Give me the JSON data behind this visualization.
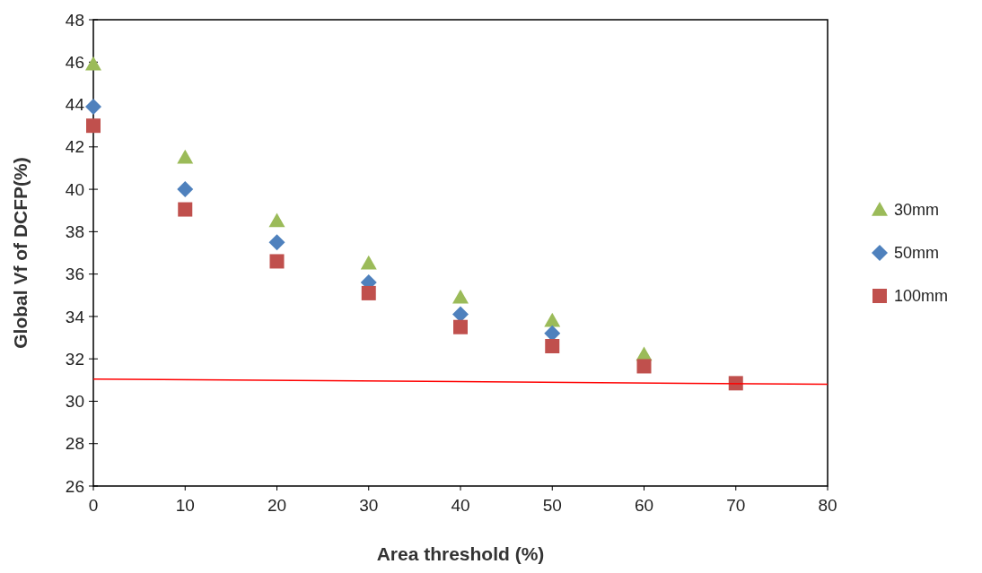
{
  "chart_data": {
    "type": "scatter",
    "xlabel": "Area threshold (%)",
    "ylabel": "Global Vf of DCFP(%)",
    "x": [
      0,
      10,
      20,
      30,
      40,
      50,
      60,
      70
    ],
    "series": [
      {
        "name": "30mm",
        "color": "#9bbb59",
        "marker": "triangle",
        "values": [
          45.9,
          41.5,
          38.5,
          36.5,
          34.9,
          33.8,
          32.2,
          null
        ]
      },
      {
        "name": "50mm",
        "color": "#4f81bd",
        "marker": "diamond",
        "values": [
          43.9,
          40.0,
          37.5,
          35.6,
          34.1,
          33.2,
          null,
          null
        ]
      },
      {
        "name": "100mm",
        "color": "#c0504d",
        "marker": "square",
        "values": [
          43.0,
          39.05,
          36.6,
          35.1,
          33.5,
          32.6,
          31.65,
          30.85
        ]
      },
      {
        "type": "line",
        "color": "#ff0000",
        "marker": "none",
        "line_style": "solid",
        "x": [
          0,
          80
        ],
        "values": [
          31.05,
          30.8
        ]
      }
    ],
    "xlim": [
      0,
      80
    ],
    "xticks": [
      0,
      10,
      20,
      30,
      40,
      50,
      60,
      70,
      80
    ],
    "ylim": [
      26,
      48
    ],
    "yticks": [
      26,
      28,
      30,
      32,
      34,
      36,
      38,
      40,
      42,
      44,
      46,
      48
    ],
    "grid": false,
    "legend": "right"
  }
}
